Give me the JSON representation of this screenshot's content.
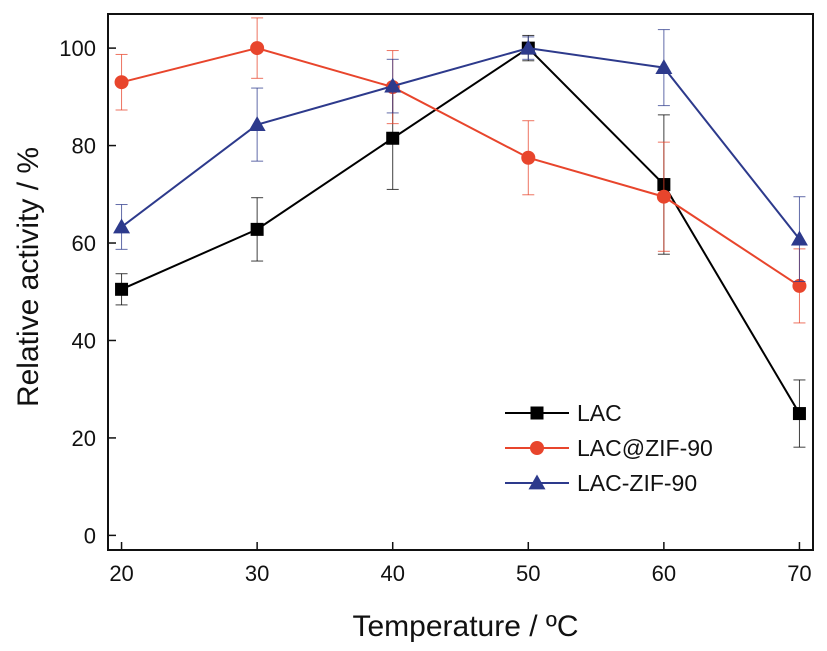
{
  "chart_data": {
    "type": "line",
    "xlabel": "Temperature / ºC",
    "ylabel": "Relative activity / %",
    "xlim": [
      19,
      71
    ],
    "ylim": [
      -3,
      107
    ],
    "xticks": [
      20,
      30,
      40,
      50,
      60,
      70
    ],
    "yticks": [
      0,
      20,
      40,
      60,
      80,
      100
    ],
    "grid": false,
    "legend_position": "bottom-right",
    "x": [
      20,
      30,
      40,
      50,
      60,
      70
    ],
    "series": [
      {
        "name": "LAC",
        "marker": "square",
        "color": "#000000",
        "values": [
          50.5,
          62.8,
          81.5,
          100,
          72,
          25
        ],
        "errors": [
          3.2,
          6.5,
          10.5,
          2.6,
          14.3,
          6.9
        ]
      },
      {
        "name": "LAC@ZIF-90",
        "marker": "circle",
        "color": "#e8452c",
        "values": [
          93,
          100,
          92,
          77.5,
          69.5,
          51.2
        ],
        "errors": [
          5.7,
          6.2,
          7.5,
          7.6,
          11.2,
          7.6
        ]
      },
      {
        "name": "LAC-ZIF-90",
        "marker": "triangle",
        "color": "#2d3a8c",
        "values": [
          63.3,
          84.3,
          92.2,
          100,
          96,
          60.8
        ],
        "errors": [
          4.6,
          7.5,
          5.5,
          2.3,
          7.8,
          8.7
        ]
      }
    ]
  }
}
